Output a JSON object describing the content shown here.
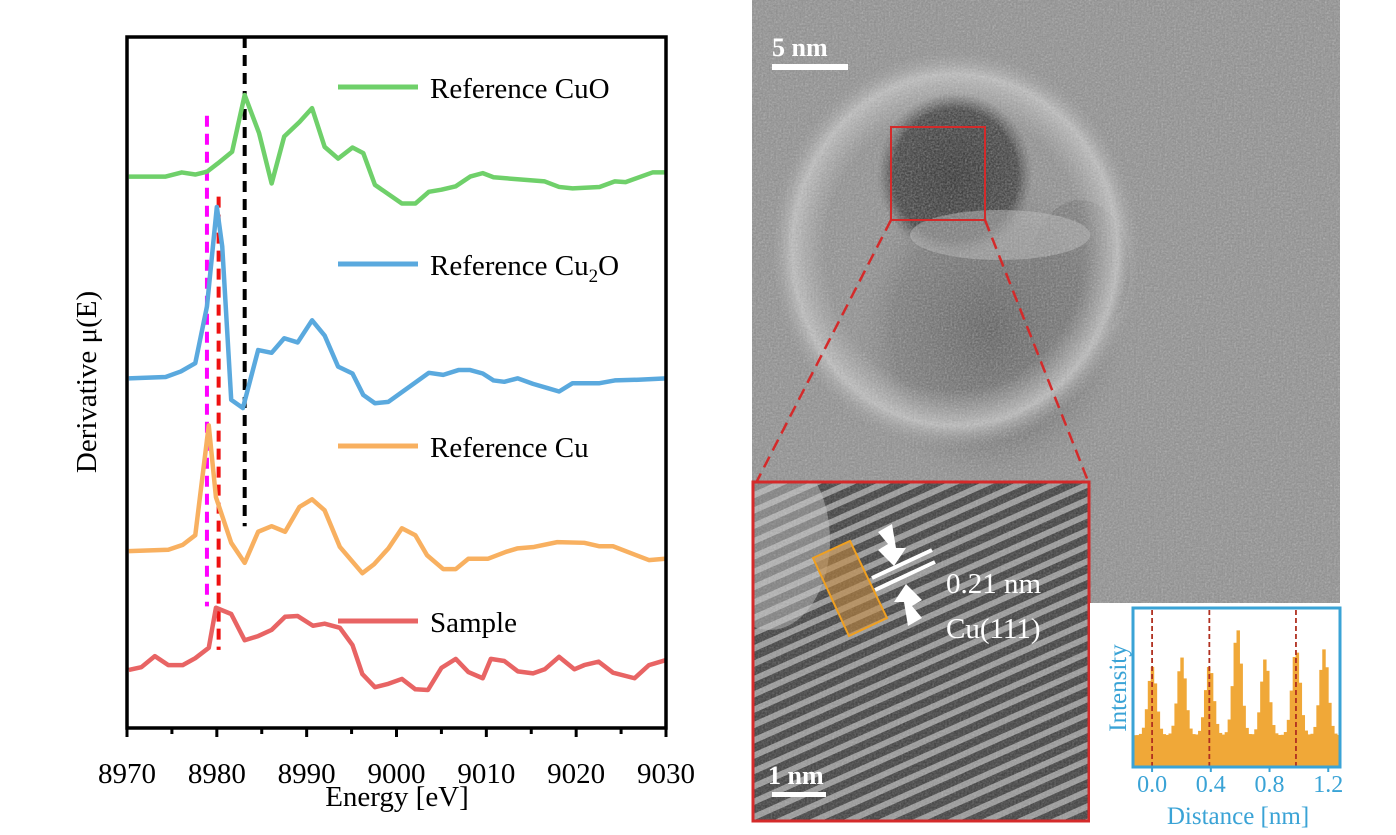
{
  "chart_data": [
    {
      "type": "line",
      "xlabel": "Energy [eV]",
      "ylabel": "Derivative μ(E)",
      "xlim": [
        8970,
        9030
      ],
      "ylim": [
        0,
        100
      ],
      "xticks": [
        "8970",
        "8980",
        "8990",
        "9000",
        "9010",
        "9020",
        "9030"
      ],
      "xtick_values": [
        8970,
        8980,
        8990,
        9000,
        9010,
        9020,
        9030
      ],
      "minor_tick_step": 5,
      "grid": false,
      "legend_placement": "inline-right",
      "series": [
        {
          "name": "Reference CuO",
          "color": "#6fd06a",
          "points": [
            [
              8970.2,
              79.8
            ],
            [
              8974.3,
              79.8
            ],
            [
              8976.1,
              80.4
            ],
            [
              8977.6,
              80.1
            ],
            [
              8978.9,
              80.5
            ],
            [
              8980.1,
              81.7
            ],
            [
              8981.7,
              83.4
            ],
            [
              8983.1,
              91.6
            ],
            [
              8984.7,
              86.1
            ],
            [
              8986.1,
              78.8
            ],
            [
              8987.5,
              85.6
            ],
            [
              8989.2,
              87.7
            ],
            [
              8990.6,
              89.7
            ],
            [
              8992.0,
              84.1
            ],
            [
              8993.5,
              82.4
            ],
            [
              8995.1,
              84.0
            ],
            [
              8996.3,
              83.2
            ],
            [
              8997.6,
              78.6
            ],
            [
              9000.6,
              75.9
            ],
            [
              9002.1,
              75.9
            ],
            [
              9003.6,
              77.6
            ],
            [
              9005.0,
              77.9
            ],
            [
              9006.6,
              78.4
            ],
            [
              9008.2,
              79.8
            ],
            [
              9009.6,
              80.3
            ],
            [
              9010.8,
              79.7
            ],
            [
              9016.5,
              79.1
            ],
            [
              9018.1,
              78.3
            ],
            [
              9019.6,
              78.1
            ],
            [
              9022.6,
              78.3
            ],
            [
              9024.3,
              79.1
            ],
            [
              9025.5,
              79.0
            ],
            [
              9028.5,
              80.4
            ],
            [
              9030.0,
              80.4
            ]
          ]
        },
        {
          "name": "Reference Cu",
          "name_sub": "2",
          "name_suffix": "O",
          "name_prefix": "Reference Cu",
          "color": "#5aa9de",
          "points": [
            [
              8970.2,
              50.6
            ],
            [
              8974.3,
              50.8
            ],
            [
              8976.0,
              51.6
            ],
            [
              8977.6,
              52.8
            ],
            [
              8978.9,
              61.0
            ],
            [
              8980.0,
              75.4
            ],
            [
              8980.6,
              69.7
            ],
            [
              8981.6,
              47.5
            ],
            [
              8982.9,
              46.3
            ],
            [
              8984.6,
              54.7
            ],
            [
              8986.1,
              54.3
            ],
            [
              8987.5,
              56.4
            ],
            [
              8989.0,
              55.8
            ],
            [
              8990.6,
              59.0
            ],
            [
              8992.0,
              56.8
            ],
            [
              8993.5,
              52.3
            ],
            [
              8995.1,
              51.3
            ],
            [
              8996.3,
              48.2
            ],
            [
              8997.6,
              47.0
            ],
            [
              8999.1,
              47.2
            ],
            [
              9003.6,
              51.4
            ],
            [
              9005.2,
              51.1
            ],
            [
              9006.9,
              51.8
            ],
            [
              9008.2,
              51.8
            ],
            [
              9009.6,
              51.3
            ],
            [
              9010.8,
              50.3
            ],
            [
              9012.0,
              50.1
            ],
            [
              9013.5,
              50.6
            ],
            [
              9015.2,
              49.8
            ],
            [
              9016.8,
              49.2
            ],
            [
              9018.1,
              48.7
            ],
            [
              9019.6,
              49.9
            ],
            [
              9022.6,
              49.9
            ],
            [
              9024.3,
              50.3
            ],
            [
              9026.9,
              50.4
            ],
            [
              9030.0,
              50.6
            ]
          ]
        },
        {
          "name": "Reference Cu",
          "color": "#f8b060",
          "points": [
            [
              8970.2,
              25.6
            ],
            [
              8974.6,
              25.8
            ],
            [
              8976.2,
              26.5
            ],
            [
              8977.6,
              27.9
            ],
            [
              8979.1,
              43.8
            ],
            [
              8979.9,
              33.4
            ],
            [
              8981.6,
              26.8
            ],
            [
              8983.1,
              23.9
            ],
            [
              8984.6,
              28.4
            ],
            [
              8986.1,
              29.2
            ],
            [
              8987.6,
              28.4
            ],
            [
              8989.2,
              32.0
            ],
            [
              8990.6,
              33.1
            ],
            [
              8992.0,
              31.5
            ],
            [
              8993.7,
              26.2
            ],
            [
              8996.2,
              22.4
            ],
            [
              8997.5,
              23.7
            ],
            [
              8999.1,
              26.0
            ],
            [
              9000.6,
              28.9
            ],
            [
              9002.1,
              27.9
            ],
            [
              9003.4,
              25.0
            ],
            [
              9005.2,
              23.0
            ],
            [
              9006.6,
              23.0
            ],
            [
              9008.0,
              24.5
            ],
            [
              9010.2,
              24.5
            ],
            [
              9012.2,
              25.5
            ],
            [
              9013.5,
              26.0
            ],
            [
              9015.3,
              26.2
            ],
            [
              9017.9,
              26.9
            ],
            [
              9020.9,
              26.8
            ],
            [
              9022.6,
              26.3
            ],
            [
              9024.1,
              26.3
            ],
            [
              9028.1,
              24.3
            ],
            [
              9029.9,
              24.5
            ]
          ]
        },
        {
          "name": "Sample",
          "color": "#e86464",
          "points": [
            [
              8970.2,
              8.4
            ],
            [
              8971.6,
              8.8
            ],
            [
              8973.1,
              10.4
            ],
            [
              8974.6,
              9.1
            ],
            [
              8976.2,
              9.1
            ],
            [
              8977.6,
              10.1
            ],
            [
              8979.1,
              11.6
            ],
            [
              8979.9,
              17.4
            ],
            [
              8981.6,
              16.5
            ],
            [
              8983.1,
              12.7
            ],
            [
              8984.6,
              13.3
            ],
            [
              8986.1,
              14.2
            ],
            [
              8987.6,
              16.1
            ],
            [
              8989.0,
              16.2
            ],
            [
              8990.7,
              14.8
            ],
            [
              8992.0,
              15.1
            ],
            [
              8993.7,
              14.5
            ],
            [
              8995.1,
              12.0
            ],
            [
              8996.2,
              7.8
            ],
            [
              8997.6,
              5.9
            ],
            [
              8999.1,
              6.4
            ],
            [
              9000.6,
              7.1
            ],
            [
              9002.1,
              5.6
            ],
            [
              9003.5,
              5.5
            ],
            [
              9005.0,
              8.7
            ],
            [
              9006.6,
              10.0
            ],
            [
              9008.0,
              8.1
            ],
            [
              9009.6,
              7.2
            ],
            [
              9010.5,
              10.0
            ],
            [
              9012.0,
              9.7
            ],
            [
              9013.5,
              8.2
            ],
            [
              9015.2,
              7.9
            ],
            [
              9016.5,
              8.5
            ],
            [
              9018.1,
              10.3
            ],
            [
              9019.8,
              8.5
            ],
            [
              9020.9,
              9.1
            ],
            [
              9022.5,
              9.6
            ],
            [
              9024.1,
              8.0
            ],
            [
              9026.5,
              7.2
            ],
            [
              9028.1,
              9.1
            ],
            [
              9029.9,
              9.8
            ]
          ]
        }
      ],
      "reference_lines": [
        {
          "x": 8978.9,
          "y_range": [
            17.6,
            88.6
          ],
          "color": "#ff00ff",
          "style": "dashed"
        },
        {
          "x": 8980.2,
          "y_range": [
            11.3,
            76.9
          ],
          "color": "#ee1111",
          "style": "dashed"
        },
        {
          "x": 8983.1,
          "y_range": [
            29.2,
            100
          ],
          "color": "#000000",
          "style": "dashed"
        }
      ]
    },
    {
      "type": "bar",
      "xlabel": "Distance [nm]",
      "ylabel": "Intensity",
      "xlim": [
        -0.13,
        1.28
      ],
      "ylim": [
        0,
        1
      ],
      "xticks": [
        "0.0",
        "0.4",
        "0.8",
        "1.2"
      ],
      "xtick_values": [
        0.0,
        0.4,
        0.8,
        1.2
      ],
      "color": "#f0a838",
      "axis_color": "#3aa3d6",
      "peaks": [
        [
          0.0,
          0.63
        ],
        [
          0.2,
          0.69
        ],
        [
          0.39,
          0.64
        ],
        [
          0.58,
          0.87
        ],
        [
          0.77,
          0.68
        ],
        [
          0.98,
          0.74
        ],
        [
          1.17,
          0.74
        ]
      ],
      "baseline": 0.2,
      "marker_lines": [
        0.0,
        0.39,
        0.98
      ],
      "marker_color": "#b03020"
    }
  ],
  "tem": {
    "scale_bar_main": "5 nm",
    "scale_bar_inset": "1 nm",
    "lattice_spacing": "0.21 nm",
    "lattice_plane": "Cu(111)",
    "zoom_box_color": "#d42a2a",
    "profile_box_color": "#e8a030"
  }
}
